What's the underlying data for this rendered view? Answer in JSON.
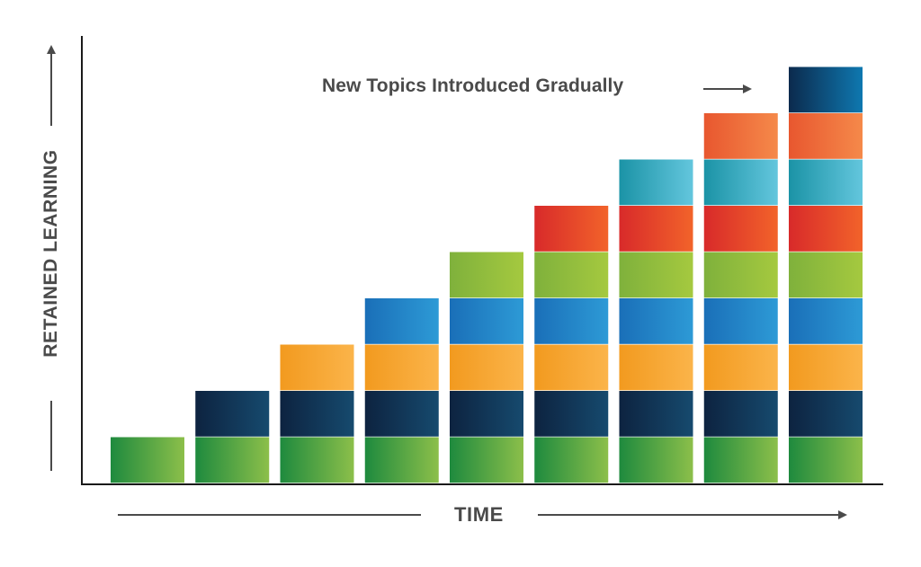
{
  "chart_data": {
    "type": "bar",
    "stacked": true,
    "xlabel": "TIME",
    "ylabel": "RETAINED LEARNING",
    "annotation": "New Topics Introduced Gradually",
    "categories": [
      "",
      "",
      "",
      "",
      "",
      "",
      "",
      "",
      ""
    ],
    "ylim": [
      0,
      9
    ],
    "grid": false,
    "legend": "none",
    "series": [
      {
        "color_start": "#1e8a3e",
        "color_end": "#8cbf4a",
        "values": [
          1,
          1,
          1,
          1,
          1,
          1,
          1,
          1,
          1
        ]
      },
      {
        "color_start": "#0d2340",
        "color_end": "#164a6e",
        "values": [
          0,
          1,
          1,
          1,
          1,
          1,
          1,
          1,
          1
        ]
      },
      {
        "color_start": "#f29a1f",
        "color_end": "#fbb44a",
        "values": [
          0,
          0,
          1,
          1,
          1,
          1,
          1,
          1,
          1
        ]
      },
      {
        "color_start": "#1a6fb8",
        "color_end": "#2d9ad6",
        "values": [
          0,
          0,
          0,
          1,
          1,
          1,
          1,
          1,
          1
        ]
      },
      {
        "color_start": "#7fb13c",
        "color_end": "#a5c93f",
        "values": [
          0,
          0,
          0,
          0,
          1,
          1,
          1,
          1,
          1
        ]
      },
      {
        "color_start": "#d82a2a",
        "color_end": "#f2632a",
        "values": [
          0,
          0,
          0,
          0,
          0,
          1,
          1,
          1,
          1
        ]
      },
      {
        "color_start": "#1b93a6",
        "color_end": "#63c6dd",
        "values": [
          0,
          0,
          0,
          0,
          0,
          0,
          1,
          1,
          1
        ]
      },
      {
        "color_start": "#e8572f",
        "color_end": "#f5894a",
        "values": [
          0,
          0,
          0,
          0,
          0,
          0,
          0,
          1,
          1
        ]
      },
      {
        "color_start": "#0c2a4d",
        "color_end": "#0e78b0",
        "values": [
          0,
          0,
          0,
          0,
          0,
          0,
          0,
          0,
          1
        ]
      }
    ],
    "colors": {
      "text": "#4a4a4a",
      "axis": "#1a1a1a",
      "arrow": "#4a4a4a"
    }
  }
}
